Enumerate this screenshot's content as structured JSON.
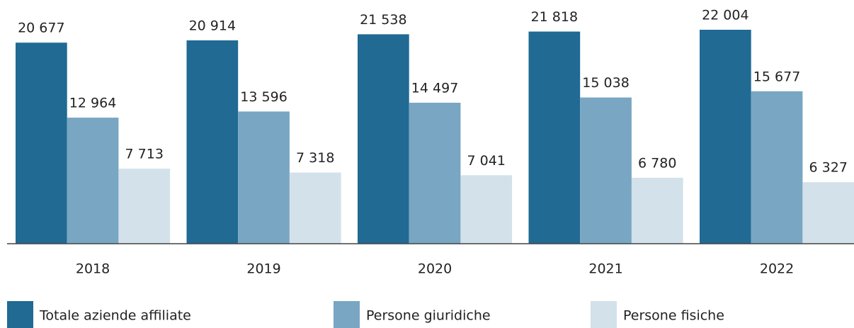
{
  "chart_data": {
    "type": "bar",
    "categories": [
      "2018",
      "2019",
      "2020",
      "2021",
      "2022"
    ],
    "series": [
      {
        "name": "Totale aziende affiliate",
        "color": "#206a94",
        "values": [
          20677,
          20914,
          21538,
          21818,
          22004
        ],
        "value_labels": [
          "20 677",
          "20 914",
          "21 538",
          "21 818",
          "22 004"
        ]
      },
      {
        "name": "Persone giuridiche",
        "color": "#78a6c3",
        "values": [
          12964,
          13596,
          14497,
          15038,
          15677
        ],
        "value_labels": [
          "12 964",
          "13 596",
          "14 497",
          "15 038",
          "15 677"
        ]
      },
      {
        "name": "Persone fisiche",
        "color": "#d3e1ea",
        "values": [
          7713,
          7318,
          7041,
          6780,
          6327
        ],
        "value_labels": [
          "7 713",
          "7 318",
          "7 041",
          "6 780",
          "6 327"
        ]
      }
    ]
  }
}
